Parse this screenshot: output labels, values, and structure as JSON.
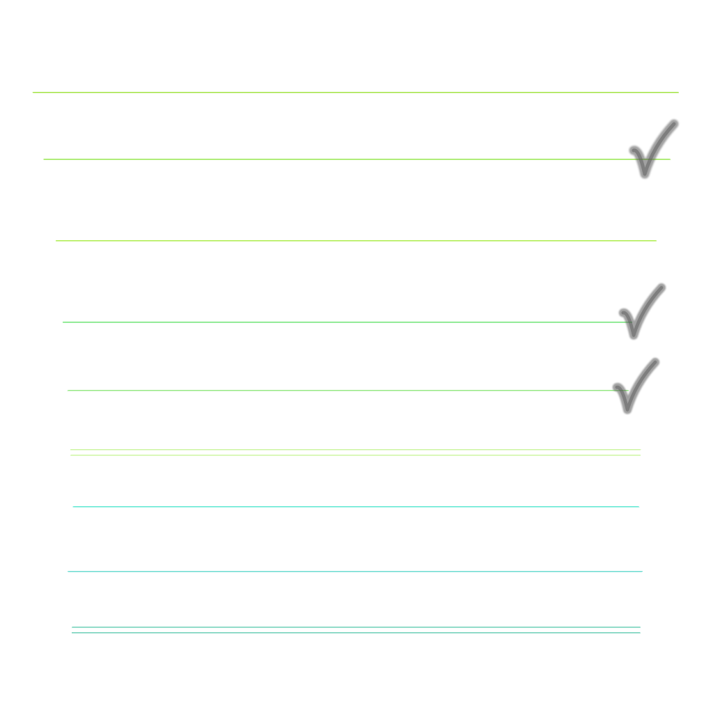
{
  "checklist": {
    "lines": [
      {
        "color": "#9be233",
        "checked": false,
        "double": false
      },
      {
        "color": "#8fe640",
        "checked": true,
        "double": false
      },
      {
        "color": "#a6ec3c",
        "checked": false,
        "double": false
      },
      {
        "color": "#63e36a",
        "checked": true,
        "double": false
      },
      {
        "color": "#8ee77a",
        "checked": true,
        "double": false
      },
      {
        "color": "#bdf283",
        "checked": false,
        "double": true
      },
      {
        "color": "#4fe6cf",
        "checked": false,
        "double": false
      },
      {
        "color": "#5ed9cd",
        "checked": false,
        "double": false
      },
      {
        "color": "#3ebf9f",
        "checked": false,
        "double": true
      }
    ],
    "checkmark_color": "#555555",
    "checkmark_icon": "checkmark-icon"
  }
}
